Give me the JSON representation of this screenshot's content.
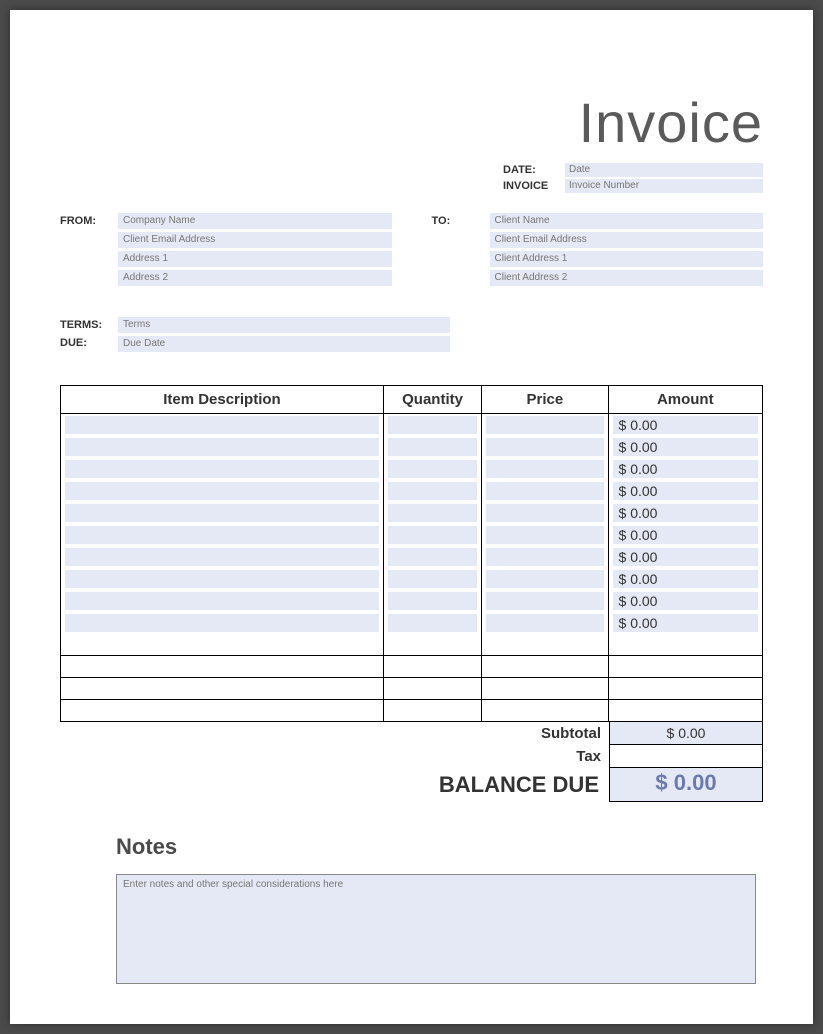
{
  "title": "Invoice",
  "meta": {
    "date_label": "DATE:",
    "date_placeholder": "Date",
    "invoice_label": "INVOICE",
    "invoice_placeholder": "Invoice Number"
  },
  "from": {
    "label": "FROM:",
    "fields": [
      "Company Name",
      "Client Email Address",
      "Address 1",
      "Address 2"
    ]
  },
  "to": {
    "label": "TO:",
    "fields": [
      "Client Name",
      "Client Email Address",
      "Client Address 1",
      "Client Address 2"
    ]
  },
  "terms": {
    "terms_label": "TERMS:",
    "terms_placeholder": "Terms",
    "due_label": "DUE:",
    "due_placeholder": "Due Date"
  },
  "table": {
    "headers": {
      "desc": "Item Description",
      "qty": "Quantity",
      "price": "Price",
      "amount": "Amount"
    },
    "amount_default": "$ 0.00",
    "row_count": 10,
    "blank_row_count": 4
  },
  "totals": {
    "subtotal_label": "Subtotal",
    "subtotal_value": "$ 0.00",
    "tax_label": "Tax",
    "tax_value": "",
    "balance_label": "BALANCE DUE",
    "balance_value": "$ 0.00"
  },
  "notes": {
    "heading": "Notes",
    "placeholder": "Enter notes and other special considerations here"
  },
  "colors": {
    "field_bg": "#e5e8f5",
    "page_bg": "#ffffff",
    "outer_bg": "#4a4a4a",
    "balance_text": "#6b79b0"
  }
}
